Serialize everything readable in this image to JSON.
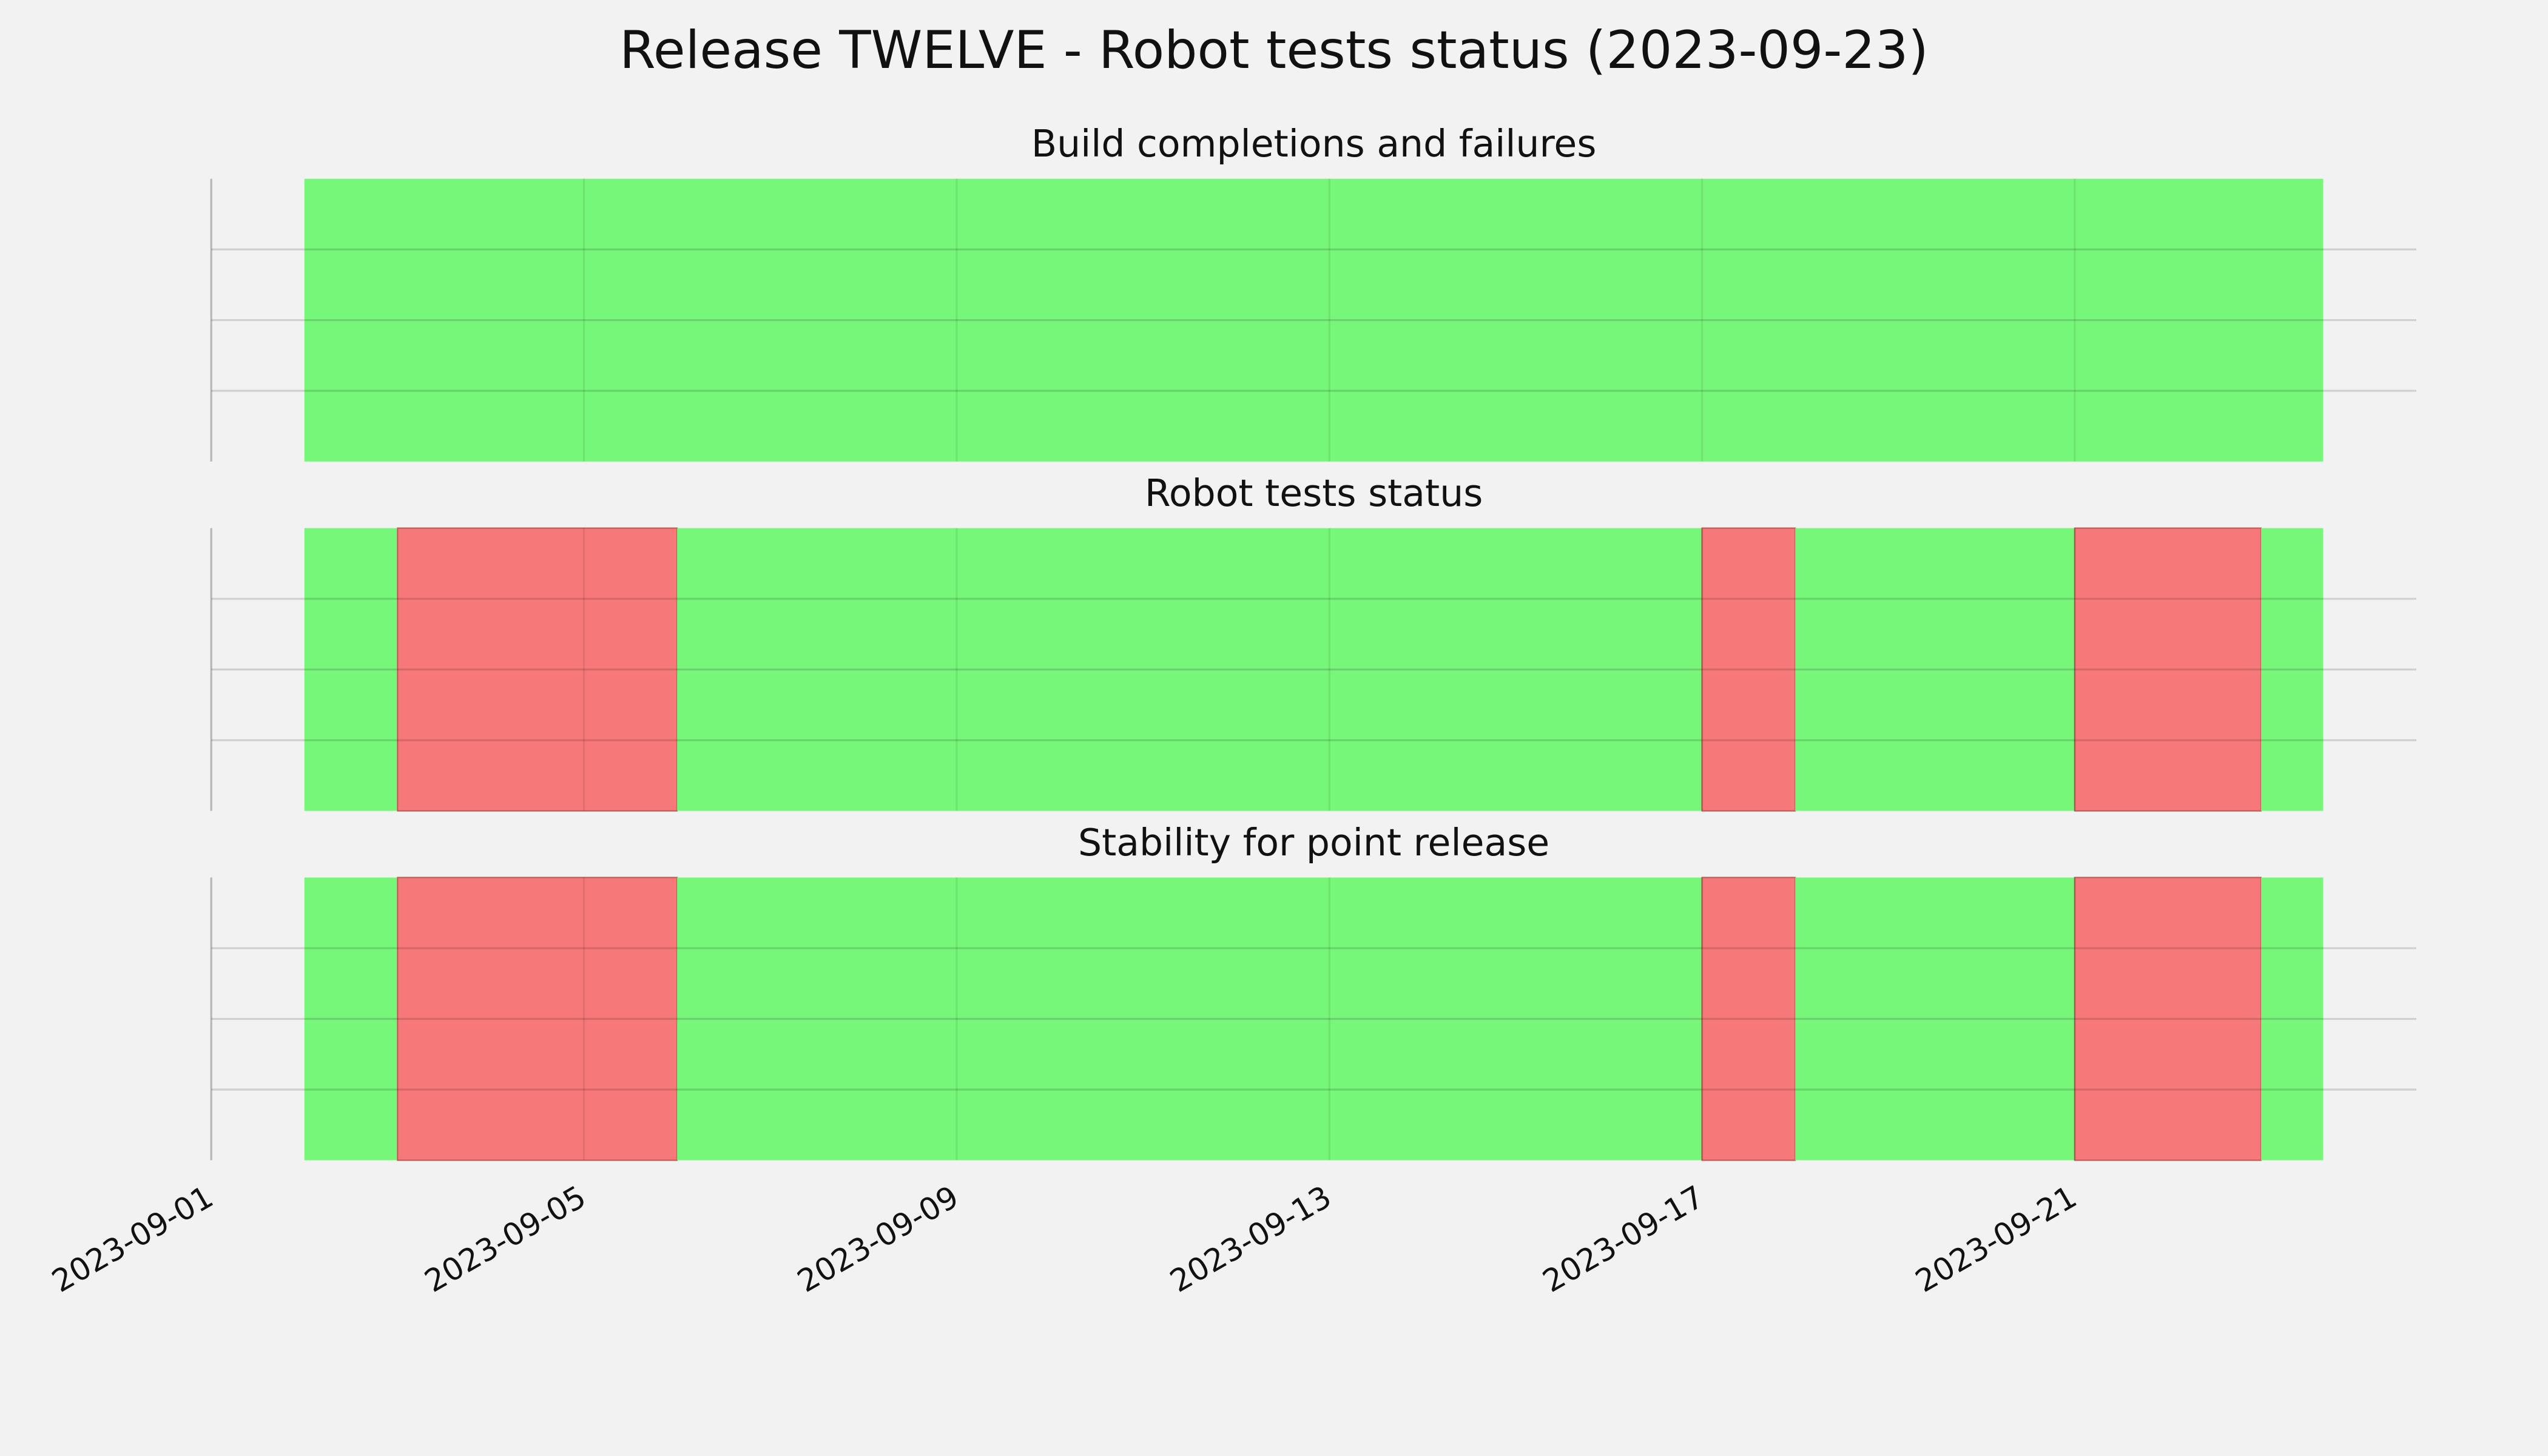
{
  "title": "Release TWELVE - Robot tests status (2023-09-23)",
  "chart_data": [
    {
      "type": "timeline",
      "title": "Build completions and failures",
      "xlim": [
        "2023-09-01",
        "2023-09-24T16:00"
      ],
      "xticks": [
        "2023-09-01",
        "2023-09-05",
        "2023-09-09",
        "2023-09-13",
        "2023-09-17",
        "2023-09-21"
      ],
      "ylim": [
        0,
        1
      ],
      "yticks": [
        0.25,
        0.5,
        0.75
      ],
      "grid": true,
      "spans": [
        {
          "start": "2023-09-02",
          "end": "2023-09-23T16:00",
          "color": "#77f77a"
        }
      ]
    },
    {
      "type": "timeline",
      "title": "Robot tests status",
      "xlim": [
        "2023-09-01",
        "2023-09-24T16:00"
      ],
      "xticks": [
        "2023-09-01",
        "2023-09-05",
        "2023-09-09",
        "2023-09-13",
        "2023-09-17",
        "2023-09-21"
      ],
      "ylim": [
        0,
        1
      ],
      "yticks": [
        0.25,
        0.5,
        0.75
      ],
      "grid": true,
      "spans": [
        {
          "start": "2023-09-02",
          "end": "2023-09-03",
          "color": "#77f77a"
        },
        {
          "start": "2023-09-03",
          "end": "2023-09-06",
          "color": "#f77878"
        },
        {
          "start": "2023-09-06",
          "end": "2023-09-17",
          "color": "#77f77a"
        },
        {
          "start": "2023-09-17",
          "end": "2023-09-18",
          "color": "#f77878"
        },
        {
          "start": "2023-09-18",
          "end": "2023-09-21",
          "color": "#77f77a"
        },
        {
          "start": "2023-09-21",
          "end": "2023-09-23",
          "color": "#f77878"
        },
        {
          "start": "2023-09-23",
          "end": "2023-09-23T16:00",
          "color": "#77f77a"
        }
      ]
    },
    {
      "type": "timeline",
      "title": "Stability for point release",
      "xlim": [
        "2023-09-01",
        "2023-09-24T16:00"
      ],
      "xticks": [
        "2023-09-01",
        "2023-09-05",
        "2023-09-09",
        "2023-09-13",
        "2023-09-17",
        "2023-09-21"
      ],
      "ylim": [
        0,
        1
      ],
      "yticks": [
        0.25,
        0.5,
        0.75
      ],
      "grid": true,
      "spans": [
        {
          "start": "2023-09-02",
          "end": "2023-09-03",
          "color": "#77f77a"
        },
        {
          "start": "2023-09-03",
          "end": "2023-09-06",
          "color": "#f77878"
        },
        {
          "start": "2023-09-06",
          "end": "2023-09-17",
          "color": "#77f77a"
        },
        {
          "start": "2023-09-17",
          "end": "2023-09-18",
          "color": "#f77878"
        },
        {
          "start": "2023-09-18",
          "end": "2023-09-21",
          "color": "#77f77a"
        },
        {
          "start": "2023-09-21",
          "end": "2023-09-23",
          "color": "#f77878"
        },
        {
          "start": "2023-09-23",
          "end": "2023-09-23T16:00",
          "color": "#77f77a"
        }
      ]
    }
  ]
}
